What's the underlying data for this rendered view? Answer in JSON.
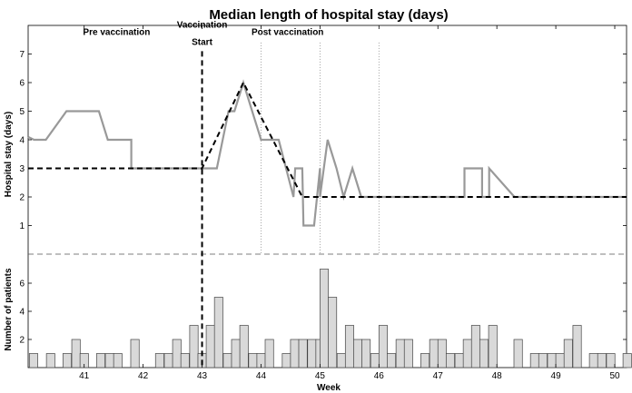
{
  "chart_data": {
    "type": "line",
    "title": "Median length of hospital stay (days)",
    "xlabel": "Week",
    "x_ticks": [
      41,
      42,
      43,
      44,
      45,
      46,
      47,
      48,
      49,
      50
    ],
    "xlim": [
      40.05,
      50.2
    ],
    "annotations": [
      {
        "text": "Pre vaccination",
        "x": 41.55,
        "y": 7.8
      },
      {
        "text": "Vaccination",
        "x": 43.0,
        "y": 8.05
      },
      {
        "text": "Start",
        "x": 43.0,
        "y": 7.45
      },
      {
        "text": "Post vaccination",
        "x": 44.45,
        "y": 7.8
      }
    ],
    "vaccination_start_week": 43.0,
    "dotted_reference_weeks": [
      44.0,
      45.0,
      46.0
    ],
    "panels": [
      {
        "name": "hospital_stay",
        "ylabel": "Hospital stay (days)",
        "y_ticks": [
          1,
          2,
          3,
          4,
          5,
          6,
          7
        ],
        "ylim": [
          0,
          8
        ],
        "series": [
          {
            "style": "solid",
            "color": "#999999",
            "x": [
              40.05,
              40.15,
              40.35,
              40.7,
              41.0,
              41.25,
              41.4,
              41.8,
              41.8,
              42.0,
              42.2,
              42.5,
              42.7,
              42.85,
              43.0,
              43.15,
              43.25,
              43.45,
              43.55,
              43.7,
              43.85,
              44.0,
              44.3,
              44.55,
              44.58,
              44.7,
              44.72,
              44.9,
              45.0,
              45.0,
              45.13,
              45.28,
              45.4,
              45.55,
              45.7,
              45.85,
              46.05,
              47.45,
              47.45,
              47.75,
              47.75,
              47.87,
              47.87,
              48.3,
              48.55,
              50.2
            ],
            "y": [
              4.1,
              4.0,
              4.0,
              5.0,
              5.0,
              5.0,
              4.0,
              4.0,
              3.0,
              3.0,
              3.0,
              3.0,
              3.0,
              3.0,
              3.0,
              3.0,
              3.0,
              5.0,
              5.0,
              6.0,
              5.0,
              4.0,
              4.0,
              2.0,
              3.0,
              3.0,
              1.0,
              1.0,
              3.0,
              2.0,
              4.0,
              3.0,
              2.0,
              3.0,
              2.0,
              2.0,
              2.0,
              2.0,
              3.0,
              3.0,
              2.0,
              2.0,
              3.0,
              2.0,
              2.0,
              2.0
            ]
          },
          {
            "style": "dashed",
            "color": "#000000",
            "x": [
              40.05,
              43.0,
              43.7,
              44.7,
              50.2
            ],
            "y": [
              3.0,
              3.0,
              6.0,
              2.0,
              2.0
            ]
          }
        ]
      },
      {
        "name": "patients",
        "ylabel": "Number of patients",
        "type": "bar",
        "y_ticks": [
          2,
          4,
          6
        ],
        "ylim": [
          0,
          8
        ],
        "bar_color": "#d9d9d9",
        "bar_width_weeks": 0.143,
        "bars": [
          {
            "x": 40.07,
            "y": 1
          },
          {
            "x": 40.36,
            "y": 1
          },
          {
            "x": 40.64,
            "y": 1
          },
          {
            "x": 40.79,
            "y": 2
          },
          {
            "x": 40.93,
            "y": 1
          },
          {
            "x": 41.21,
            "y": 1
          },
          {
            "x": 41.36,
            "y": 1
          },
          {
            "x": 41.5,
            "y": 1
          },
          {
            "x": 41.79,
            "y": 2
          },
          {
            "x": 42.21,
            "y": 1
          },
          {
            "x": 42.36,
            "y": 1
          },
          {
            "x": 42.5,
            "y": 2
          },
          {
            "x": 42.64,
            "y": 1
          },
          {
            "x": 42.79,
            "y": 3
          },
          {
            "x": 42.93,
            "y": 1
          },
          {
            "x": 43.07,
            "y": 3
          },
          {
            "x": 43.21,
            "y": 5
          },
          {
            "x": 43.36,
            "y": 1
          },
          {
            "x": 43.5,
            "y": 2
          },
          {
            "x": 43.64,
            "y": 3
          },
          {
            "x": 43.79,
            "y": 1
          },
          {
            "x": 43.93,
            "y": 1
          },
          {
            "x": 44.07,
            "y": 2
          },
          {
            "x": 44.36,
            "y": 1
          },
          {
            "x": 44.5,
            "y": 2
          },
          {
            "x": 44.64,
            "y": 2
          },
          {
            "x": 44.79,
            "y": 2
          },
          {
            "x": 44.93,
            "y": 2
          },
          {
            "x": 45.0,
            "y": 7
          },
          {
            "x": 45.14,
            "y": 5
          },
          {
            "x": 45.29,
            "y": 1
          },
          {
            "x": 45.43,
            "y": 3
          },
          {
            "x": 45.57,
            "y": 2
          },
          {
            "x": 45.71,
            "y": 2
          },
          {
            "x": 45.86,
            "y": 1
          },
          {
            "x": 46.0,
            "y": 3
          },
          {
            "x": 46.14,
            "y": 1
          },
          {
            "x": 46.29,
            "y": 2
          },
          {
            "x": 46.43,
            "y": 2
          },
          {
            "x": 46.71,
            "y": 1
          },
          {
            "x": 46.86,
            "y": 2
          },
          {
            "x": 47.0,
            "y": 2
          },
          {
            "x": 47.14,
            "y": 1
          },
          {
            "x": 47.29,
            "y": 1
          },
          {
            "x": 47.43,
            "y": 2
          },
          {
            "x": 47.57,
            "y": 3
          },
          {
            "x": 47.71,
            "y": 2
          },
          {
            "x": 47.86,
            "y": 3
          },
          {
            "x": 48.29,
            "y": 2
          },
          {
            "x": 48.57,
            "y": 1
          },
          {
            "x": 48.71,
            "y": 1
          },
          {
            "x": 48.86,
            "y": 1
          },
          {
            "x": 49.0,
            "y": 1
          },
          {
            "x": 49.14,
            "y": 2
          },
          {
            "x": 49.29,
            "y": 3
          },
          {
            "x": 49.57,
            "y": 1
          },
          {
            "x": 49.71,
            "y": 1
          },
          {
            "x": 49.86,
            "y": 1
          },
          {
            "x": 50.14,
            "y": 1
          }
        ]
      }
    ]
  }
}
